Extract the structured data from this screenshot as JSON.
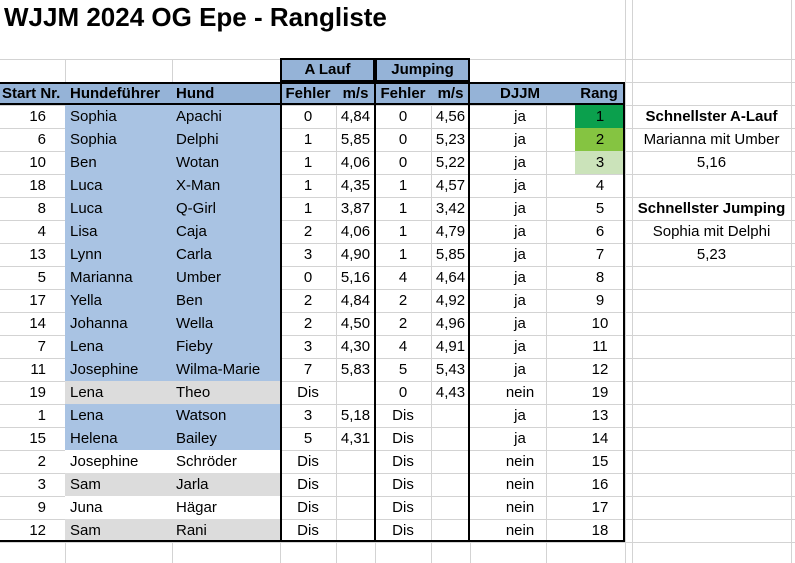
{
  "title": "WJJM 2024 OG Epe - Rangliste",
  "colors": {
    "header_fill": "#95B3D7",
    "row_fill_blue": "#A9C3E3",
    "row_fill_grey": "#DCDCDC",
    "row_fill_white": "#FFFFFF",
    "rank_green_1": "#0BA04D",
    "rank_green_2": "#85C441",
    "rank_green_3": "#CBE3BA"
  },
  "table": {
    "group_headers": [
      {
        "label": "A Lauf"
      },
      {
        "label": "Jumping"
      }
    ],
    "columns": [
      "Start Nr.",
      "Hundeführer",
      "Hund",
      "Fehler",
      "m/s",
      "Fehler",
      "m/s",
      "DJJM",
      "Rang"
    ],
    "rows": [
      {
        "start_nr": "16",
        "hundefuehrer": "Sophia",
        "hund": "Apachi",
        "a_fehler": "0",
        "a_ms": "4,84",
        "j_fehler": "0",
        "j_ms": "4,56",
        "djjm": "ja",
        "rang": "1",
        "row_fill": "blue",
        "rang_fill": "green1"
      },
      {
        "start_nr": "6",
        "hundefuehrer": "Sophia",
        "hund": "Delphi",
        "a_fehler": "1",
        "a_ms": "5,85",
        "j_fehler": "0",
        "j_ms": "5,23",
        "djjm": "ja",
        "rang": "2",
        "row_fill": "blue",
        "rang_fill": "green2"
      },
      {
        "start_nr": "10",
        "hundefuehrer": "Ben",
        "hund": "Wotan",
        "a_fehler": "1",
        "a_ms": "4,06",
        "j_fehler": "0",
        "j_ms": "5,22",
        "djjm": "ja",
        "rang": "3",
        "row_fill": "blue",
        "rang_fill": "green3"
      },
      {
        "start_nr": "18",
        "hundefuehrer": "Luca",
        "hund": "X-Man",
        "a_fehler": "1",
        "a_ms": "4,35",
        "j_fehler": "1",
        "j_ms": "4,57",
        "djjm": "ja",
        "rang": "4",
        "row_fill": "blue",
        "rang_fill": "none"
      },
      {
        "start_nr": "8",
        "hundefuehrer": "Luca",
        "hund": "Q-Girl",
        "a_fehler": "1",
        "a_ms": "3,87",
        "j_fehler": "1",
        "j_ms": "3,42",
        "djjm": "ja",
        "rang": "5",
        "row_fill": "blue",
        "rang_fill": "none"
      },
      {
        "start_nr": "4",
        "hundefuehrer": "Lisa",
        "hund": "Caja",
        "a_fehler": "2",
        "a_ms": "4,06",
        "j_fehler": "1",
        "j_ms": "4,79",
        "djjm": "ja",
        "rang": "6",
        "row_fill": "blue",
        "rang_fill": "none"
      },
      {
        "start_nr": "13",
        "hundefuehrer": "Lynn",
        "hund": "Carla",
        "a_fehler": "3",
        "a_ms": "4,90",
        "j_fehler": "1",
        "j_ms": "5,85",
        "djjm": "ja",
        "rang": "7",
        "row_fill": "blue",
        "rang_fill": "none"
      },
      {
        "start_nr": "5",
        "hundefuehrer": "Marianna",
        "hund": "Umber",
        "a_fehler": "0",
        "a_ms": "5,16",
        "j_fehler": "4",
        "j_ms": "4,64",
        "djjm": "ja",
        "rang": "8",
        "row_fill": "blue",
        "rang_fill": "none"
      },
      {
        "start_nr": "17",
        "hundefuehrer": "Yella",
        "hund": "Ben",
        "a_fehler": "2",
        "a_ms": "4,84",
        "j_fehler": "2",
        "j_ms": "4,92",
        "djjm": "ja",
        "rang": "9",
        "row_fill": "blue",
        "rang_fill": "none"
      },
      {
        "start_nr": "14",
        "hundefuehrer": "Johanna",
        "hund": "Wella",
        "a_fehler": "2",
        "a_ms": "4,50",
        "j_fehler": "2",
        "j_ms": "4,96",
        "djjm": "ja",
        "rang": "10",
        "row_fill": "blue",
        "rang_fill": "none"
      },
      {
        "start_nr": "7",
        "hundefuehrer": "Lena",
        "hund": "Fieby",
        "a_fehler": "3",
        "a_ms": "4,30",
        "j_fehler": "4",
        "j_ms": "4,91",
        "djjm": "ja",
        "rang": "11",
        "row_fill": "blue",
        "rang_fill": "none"
      },
      {
        "start_nr": "11",
        "hundefuehrer": "Josephine",
        "hund": "Wilma-Marie",
        "a_fehler": "7",
        "a_ms": "5,83",
        "j_fehler": "5",
        "j_ms": "5,43",
        "djjm": "ja",
        "rang": "12",
        "row_fill": "blue",
        "rang_fill": "none"
      },
      {
        "start_nr": "19",
        "hundefuehrer": "Lena",
        "hund": "Theo",
        "a_fehler": "Dis",
        "a_ms": "",
        "j_fehler": "0",
        "j_ms": "4,43",
        "djjm": "nein",
        "rang": "19",
        "row_fill": "grey",
        "rang_fill": "none"
      },
      {
        "start_nr": "1",
        "hundefuehrer": "Lena",
        "hund": "Watson",
        "a_fehler": "3",
        "a_ms": "5,18",
        "j_fehler": "Dis",
        "j_ms": "",
        "djjm": "ja",
        "rang": "13",
        "row_fill": "blue",
        "rang_fill": "none"
      },
      {
        "start_nr": "15",
        "hundefuehrer": "Helena",
        "hund": "Bailey",
        "a_fehler": "5",
        "a_ms": "4,31",
        "j_fehler": "Dis",
        "j_ms": "",
        "djjm": "ja",
        "rang": "14",
        "row_fill": "blue",
        "rang_fill": "none"
      },
      {
        "start_nr": "2",
        "hundefuehrer": "Josephine",
        "hund": "Schröder",
        "a_fehler": "Dis",
        "a_ms": "",
        "j_fehler": "Dis",
        "j_ms": "",
        "djjm": "nein",
        "rang": "15",
        "row_fill": "white",
        "rang_fill": "none"
      },
      {
        "start_nr": "3",
        "hundefuehrer": "Sam",
        "hund": "Jarla",
        "a_fehler": "Dis",
        "a_ms": "",
        "j_fehler": "Dis",
        "j_ms": "",
        "djjm": "nein",
        "rang": "16",
        "row_fill": "grey",
        "rang_fill": "none"
      },
      {
        "start_nr": "9",
        "hundefuehrer": "Juna",
        "hund": "Hägar",
        "a_fehler": "Dis",
        "a_ms": "",
        "j_fehler": "Dis",
        "j_ms": "",
        "djjm": "nein",
        "rang": "17",
        "row_fill": "white",
        "rang_fill": "none"
      },
      {
        "start_nr": "12",
        "hundefuehrer": "Sam",
        "hund": "Rani",
        "a_fehler": "Dis",
        "a_ms": "",
        "j_fehler": "Dis",
        "j_ms": "",
        "djjm": "nein",
        "rang": "18",
        "row_fill": "grey",
        "rang_fill": "none"
      }
    ]
  },
  "side_panel": {
    "fastest_alauf_title": "Schnellster A-Lauf",
    "fastest_alauf_name": "Marianna mit Umber",
    "fastest_alauf_value": "5,16",
    "fastest_jumping_title": "Schnellster Jumping",
    "fastest_jumping_name": "Sophia mit Delphi",
    "fastest_jumping_value": "5,23"
  }
}
